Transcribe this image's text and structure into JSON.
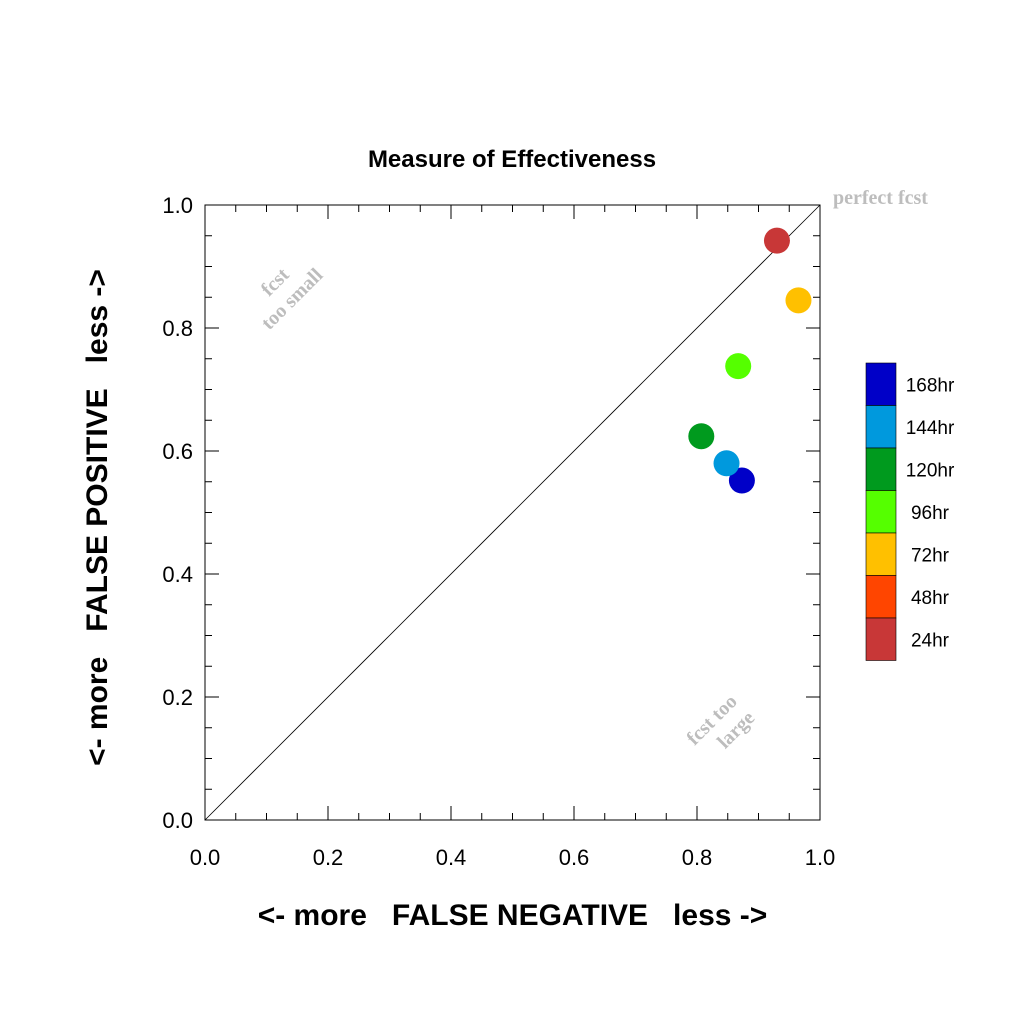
{
  "chart_data": {
    "type": "scatter",
    "title": "Measure of Effectiveness",
    "xlabel": "<- more   FALSE NEGATIVE   less ->",
    "ylabel": "<- more   FALSE POSITIVE   less ->",
    "xlim": [
      0.0,
      1.0
    ],
    "ylim": [
      0.0,
      1.0
    ],
    "x_ticks": [
      "0.0",
      "0.2",
      "0.4",
      "0.6",
      "0.8",
      "1.0"
    ],
    "y_ticks": [
      "0.0",
      "0.2",
      "0.4",
      "0.6",
      "0.8",
      "1.0"
    ],
    "grid": false,
    "diagonal_reference": true,
    "annotations": {
      "perfect": "perfect fcst",
      "too_small_line1": "fcst",
      "too_small_line2": "too small",
      "too_large_line1": "fcst too",
      "too_large_line2": "large"
    },
    "series": [
      {
        "name": "168hr",
        "color": "#0000c8",
        "x": 0.873,
        "y": 0.552
      },
      {
        "name": "144hr",
        "color": "#0099dd",
        "x": 0.848,
        "y": 0.58
      },
      {
        "name": "120hr",
        "color": "#009a1e",
        "x": 0.807,
        "y": 0.624
      },
      {
        "name": "96hr",
        "color": "#55ff00",
        "x": 0.867,
        "y": 0.738
      },
      {
        "name": "72hr",
        "color": "#ffc000",
        "x": 0.965,
        "y": 0.845
      },
      {
        "name": "48hr",
        "color": "#ff4500",
        "x": null,
        "y": null
      },
      {
        "name": "24hr",
        "color": "#c83737",
        "x": 0.93,
        "y": 0.942
      }
    ],
    "legend_position": "right",
    "legend_order": [
      "168hr",
      "144hr",
      "120hr",
      "96hr",
      "72hr",
      "48hr",
      "24hr"
    ]
  }
}
